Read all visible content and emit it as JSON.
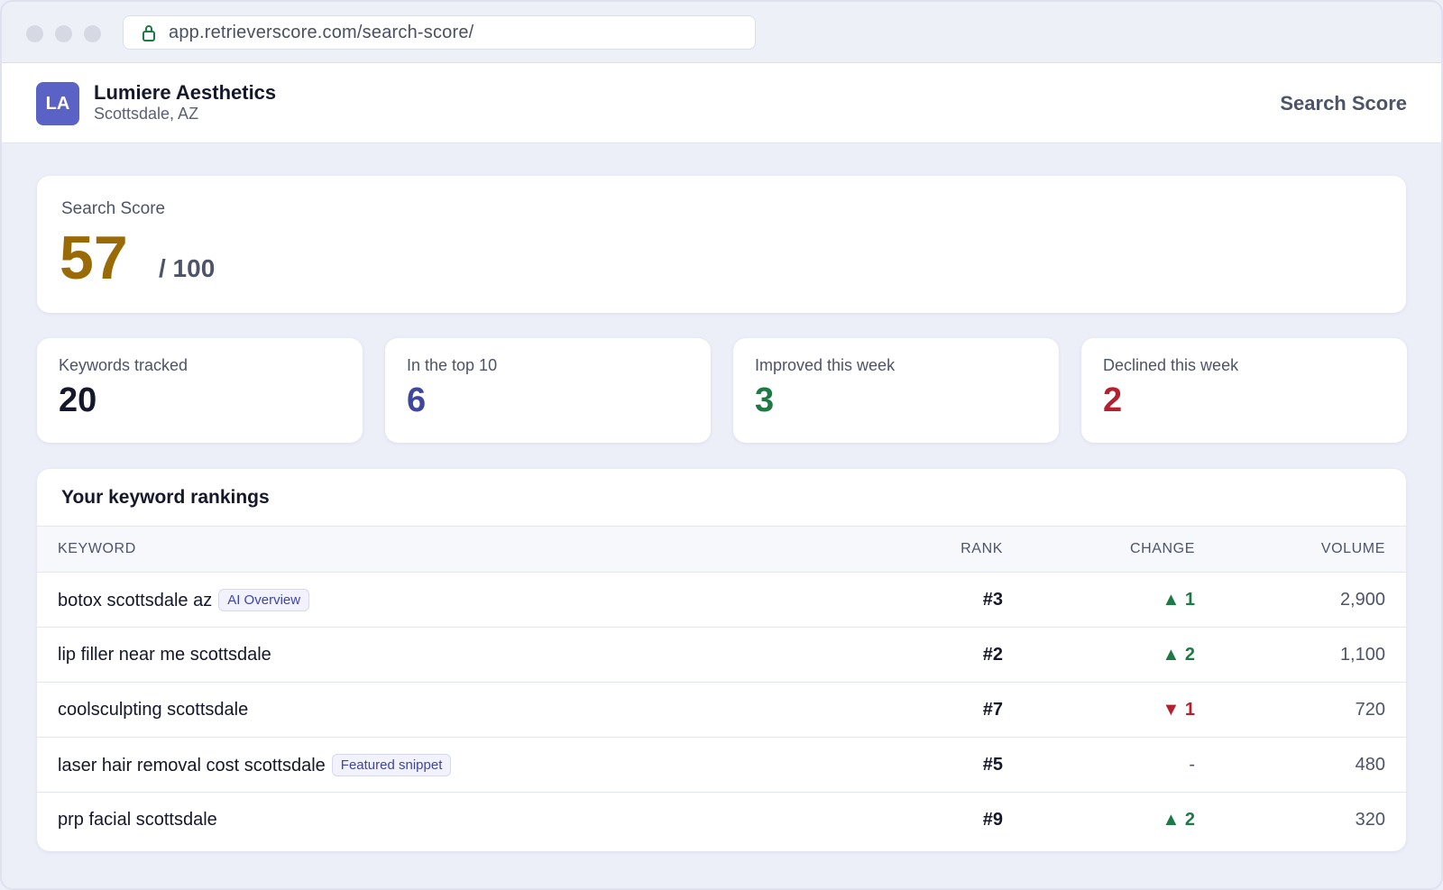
{
  "browser": {
    "url": "app.retrieverscore.com/search-score/"
  },
  "header": {
    "initials": "LA",
    "business_name": "Lumiere Aesthetics",
    "location": "Scottsdale, AZ",
    "page_title": "Search Score"
  },
  "score": {
    "label": "Search Score",
    "value": 57,
    "out_of": "/ 100",
    "color": "#9a6a06"
  },
  "stats": [
    {
      "label": "Keywords tracked",
      "value": 20,
      "color": "#15172a"
    },
    {
      "label": "In the top 10",
      "value": 6,
      "color": "#3f46a0"
    },
    {
      "label": "Improved this week",
      "value": 3,
      "color": "#1c7a45"
    },
    {
      "label": "Declined this week",
      "value": 2,
      "color": "#b3202f"
    }
  ],
  "rankings": {
    "title": "Your keyword rankings",
    "columns": [
      "KEYWORD",
      "RANK",
      "CHANGE",
      "VOLUME"
    ],
    "rows": [
      {
        "keyword": "botox scottsdale az",
        "badge": "AI Overview",
        "rank": "#3",
        "change": "▲ 1",
        "volume": "2,900"
      },
      {
        "keyword": "lip filler near me scottsdale",
        "rank": "#2",
        "change": "▲ 2",
        "volume": "1,100"
      },
      {
        "keyword": "coolsculpting scottsdale",
        "rank": "#7",
        "change": "▼ 1",
        "volume": "720"
      },
      {
        "keyword": "laser hair removal cost scottsdale",
        "badge": "Featured snippet",
        "rank": "#5",
        "change": "-",
        "volume": "480"
      },
      {
        "keyword": "prp facial scottsdale",
        "rank": "#9",
        "change": "▲ 2",
        "volume": "320"
      }
    ]
  }
}
